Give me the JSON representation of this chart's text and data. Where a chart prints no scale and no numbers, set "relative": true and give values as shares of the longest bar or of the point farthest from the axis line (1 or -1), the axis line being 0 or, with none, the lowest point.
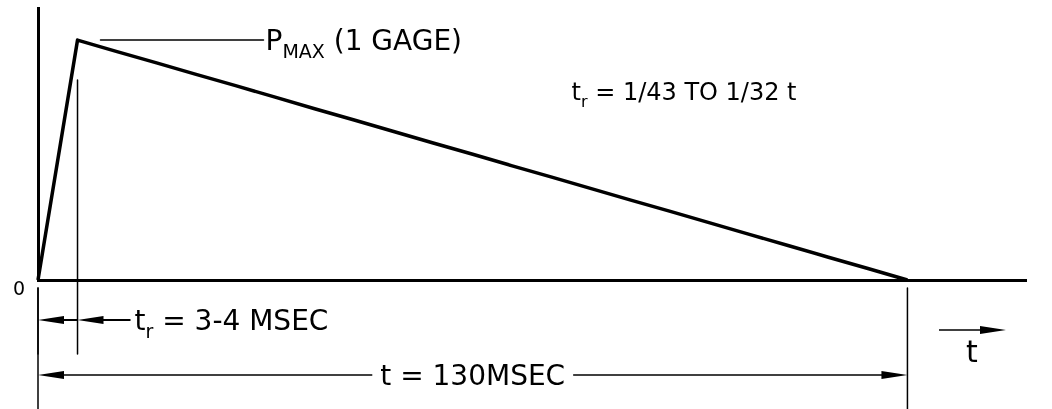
{
  "chart_data": {
    "type": "line",
    "categories": [
      null,
      null,
      null,
      null,
      null,
      null,
      null,
      null,
      null,
      null,
      null,
      null,
      null,
      null,
      null,
      null,
      null,
      null,
      null,
      null,
      null,
      null,
      null,
      null,
      null,
      null
    ],
    "values": [
      0,
      1,
      0.952,
      0.905,
      0.857,
      0.81,
      0.762,
      0.714,
      0.667,
      0.619,
      0.571,
      0.524,
      0.476,
      0.429,
      0.381,
      0.333,
      0.286,
      0.238,
      0.19,
      0.143,
      0.095,
      0.048,
      0,
      null,
      null,
      null
    ],
    "color": "#000000",
    "relative": true,
    "xlabel": "t",
    "annotations": [
      "P$_{MAX}$ (1 GAGE)",
      "t$_{r}$ = 1/43 TO 1/32 t",
      "0",
      "t$_{r}$ = 3-4 MSEC",
      "t = 130MSEC"
    ]
  }
}
